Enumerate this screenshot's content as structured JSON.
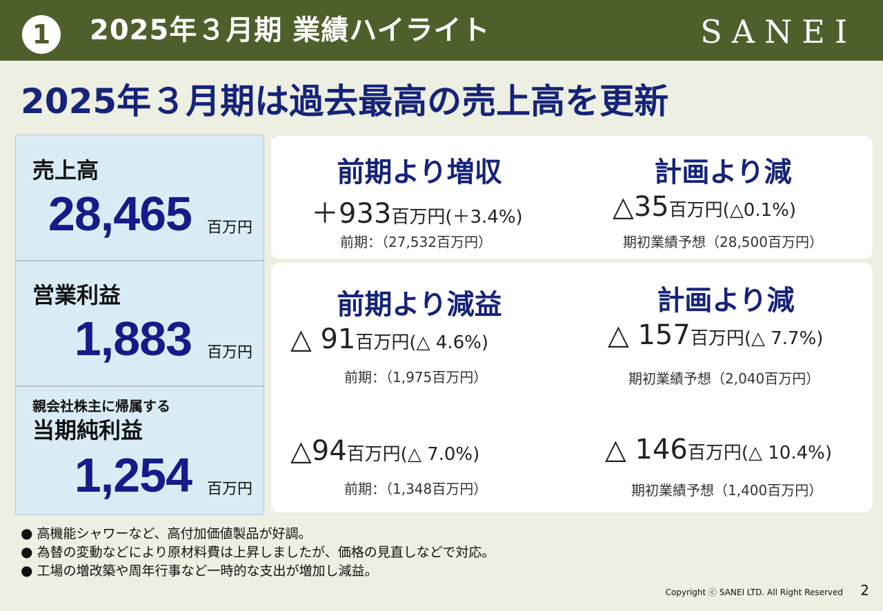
{
  "header": {
    "number": "1",
    "title": "2025年３月期 業績ハイライト",
    "logo": "SANEI"
  },
  "headline": "2025年３月期は過去最高の売上高を更新",
  "metrics": [
    {
      "label": "売上高",
      "sublabel": "",
      "value": "28,465",
      "unit": "百万円"
    },
    {
      "label": "営業利益",
      "sublabel": "",
      "value": "1,883",
      "unit": "百万円"
    },
    {
      "label": "当期純利益",
      "sublabel": "親会社株主に帰属する",
      "value": "1,254",
      "unit": "百万円"
    }
  ],
  "cards": {
    "sales": {
      "yoy_head": "前期より増収",
      "yoy_diff_num": "＋933",
      "yoy_diff_unit": "百万円(＋3.4%)",
      "yoy_note": "前期：（27,532百万円）",
      "plan_head": "計画より減",
      "plan_diff_num": "△35",
      "plan_diff_unit": "百万円(△0.1%)",
      "plan_note": "期初業績予想（28,500百万円）"
    },
    "operating": {
      "yoy_head": "前期より減益",
      "yoy_diff_num": "△ 91",
      "yoy_diff_unit": "百万円(△ 4.6%)",
      "yoy_note": "前期：（1,975百万円）",
      "plan_head": "計画より減",
      "plan_diff_num": "△ 157",
      "plan_diff_unit": "百万円(△ 7.7%)",
      "plan_note": "期初業績予想（2,040百万円）"
    },
    "net": {
      "yoy_diff_num": "△94",
      "yoy_diff_unit": "百万円(△ 7.0%)",
      "yoy_note": "前期：（1,348百万円）",
      "plan_diff_num": "△ 146",
      "plan_diff_unit": "百万円(△ 10.4%)",
      "plan_note": "期初業績予想（1,400百万円）"
    }
  },
  "bullets": [
    "高機能シャワーなど、高付加価値製品が好調。",
    "為替の変動などにより原材料費は上昇しましたが、価格の見直しなどで対応。",
    "工場の増改築や周年行事など一時的な支出が増加し減益。"
  ],
  "footer": {
    "copyright": "Copyright ⓒ SANEI LTD. All Right Reserved",
    "page": "2"
  }
}
